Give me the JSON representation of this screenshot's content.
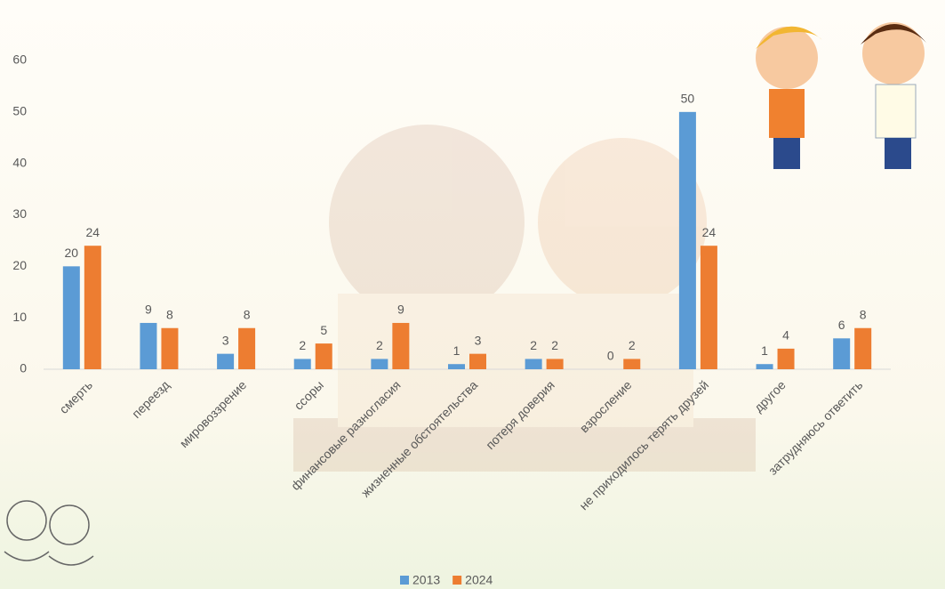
{
  "chart_data": {
    "type": "bar",
    "categories": [
      "смерть",
      "переезд",
      "мировоззрение",
      "ссоры",
      "финансовые разногласия",
      "жизненные обстоятельства",
      "потеря доверия",
      "взросление",
      "не приходилось терять друзей",
      "другое",
      "затрудняюсь ответить"
    ],
    "series": [
      {
        "name": "2013",
        "color": "#5b9bd5",
        "values": [
          20,
          9,
          3,
          2,
          2,
          1,
          2,
          0,
          50,
          1,
          6
        ]
      },
      {
        "name": "2024",
        "color": "#ed7d31",
        "values": [
          24,
          8,
          8,
          5,
          9,
          3,
          2,
          2,
          24,
          4,
          8
        ]
      }
    ],
    "ylim": [
      0,
      60
    ],
    "yticks": [
      0,
      10,
      20,
      30,
      40,
      50,
      60
    ],
    "grid": false,
    "legend": "bottom"
  }
}
